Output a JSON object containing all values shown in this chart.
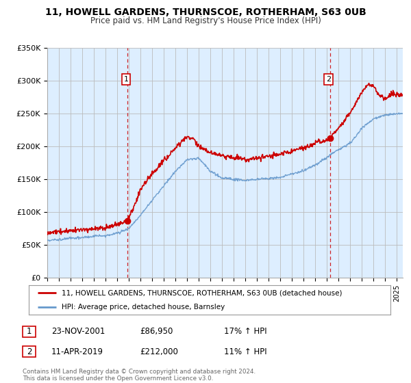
{
  "title": "11, HOWELL GARDENS, THURNSCOE, ROTHERHAM, S63 0UB",
  "subtitle": "Price paid vs. HM Land Registry's House Price Index (HPI)",
  "legend_line1": "11, HOWELL GARDENS, THURNSCOE, ROTHERHAM, S63 0UB (detached house)",
  "legend_line2": "HPI: Average price, detached house, Barnsley",
  "annotation1_date": "23-NOV-2001",
  "annotation1_price": "£86,950",
  "annotation1_hpi": "17% ↑ HPI",
  "annotation2_date": "11-APR-2019",
  "annotation2_price": "£212,000",
  "annotation2_hpi": "11% ↑ HPI",
  "footer": "Contains HM Land Registry data © Crown copyright and database right 2024.\nThis data is licensed under the Open Government Licence v3.0.",
  "red_color": "#cc0000",
  "blue_color": "#6699cc",
  "bg_color": "#ddeeff",
  "plot_bg": "#ffffff",
  "vline_color": "#cc0000",
  "grid_color": "#bbbbbb",
  "ylim": [
    0,
    350000
  ],
  "xlim_start": 1995.0,
  "xlim_end": 2025.5,
  "marker1_x": 2001.9,
  "marker1_y": 86950,
  "marker2_x": 2019.28,
  "marker2_y": 212000,
  "yticks": [
    0,
    50000,
    100000,
    150000,
    200000,
    250000,
    300000,
    350000
  ],
  "ylabels": [
    "£0",
    "£50K",
    "£100K",
    "£150K",
    "£200K",
    "£250K",
    "£300K",
    "£350K"
  ]
}
